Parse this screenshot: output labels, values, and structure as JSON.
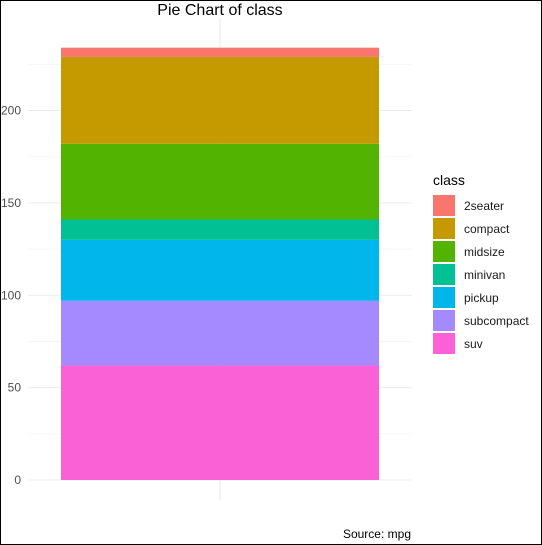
{
  "chart_data": {
    "type": "bar",
    "stacked": true,
    "title": "Pie Chart of class",
    "caption": "Source: mpg",
    "legend_title": "class",
    "legend_position": "right",
    "grid": true,
    "ylim": [
      0,
      234
    ],
    "y_ticks": [
      0,
      50,
      100,
      150,
      200
    ],
    "series": [
      {
        "name": "2seater",
        "value": 5,
        "color": "#F8766D"
      },
      {
        "name": "compact",
        "value": 47,
        "color": "#C49A00"
      },
      {
        "name": "midsize",
        "value": 41,
        "color": "#53B400"
      },
      {
        "name": "minivan",
        "value": 11,
        "color": "#00C094"
      },
      {
        "name": "pickup",
        "value": 33,
        "color": "#00B6EB"
      },
      {
        "name": "subcompact",
        "value": 35,
        "color": "#A58AFF"
      },
      {
        "name": "suv",
        "value": 62,
        "color": "#FB61D7"
      }
    ]
  }
}
